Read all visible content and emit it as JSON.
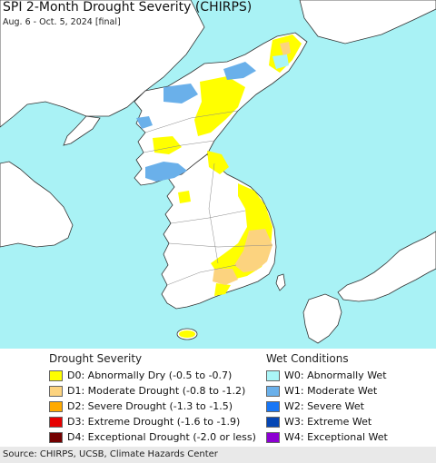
{
  "header": {
    "title": "SPI 2-Month Drought Severity (CHIRPS)",
    "subtitle": "Aug. 6 - Oct. 5, 2024 [final]"
  },
  "colors": {
    "sea": "#a9f2f5",
    "land": "#ffffff",
    "D0": "#ffff00",
    "D1": "#fcd37f",
    "D2": "#ffaa00",
    "D3": "#e60000",
    "D4": "#730000",
    "W0": "#aaf5f7",
    "W1": "#6ab0ea",
    "W2": "#1876f5",
    "W3": "#0546b4",
    "W4": "#8c00d2"
  },
  "legend": {
    "drought_title": "Drought Severity",
    "wet_title": "Wet Conditions",
    "drought": [
      {
        "code": "D0",
        "label": "D0: Abnormally Dry (-0.5 to -0.7)",
        "color": "#ffff00"
      },
      {
        "code": "D1",
        "label": "D1: Moderate Drought (-0.8 to -1.2)",
        "color": "#fcd37f"
      },
      {
        "code": "D2",
        "label": "D2: Severe Drought (-1.3 to -1.5)",
        "color": "#ffaa00"
      },
      {
        "code": "D3",
        "label": "D3: Extreme Drought (-1.6 to -1.9)",
        "color": "#e60000"
      },
      {
        "code": "D4",
        "label": "D4: Exceptional Drought (-2.0 or less)",
        "color": "#730000"
      }
    ],
    "wet": [
      {
        "code": "W0",
        "label": "W0: Abnormally Wet",
        "color": "#aaf5f7"
      },
      {
        "code": "W1",
        "label": "W1: Moderate Wet",
        "color": "#6ab0ea"
      },
      {
        "code": "W2",
        "label": "W2: Severe Wet",
        "color": "#1876f5"
      },
      {
        "code": "W3",
        "label": "W3: Extreme Wet",
        "color": "#0546b4"
      },
      {
        "code": "W4",
        "label": "W4: Exceptional Wet",
        "color": "#8c00d2"
      }
    ]
  },
  "footer": {
    "source": "Source: CHIRPS, UCSB, Climate Hazards Center"
  }
}
